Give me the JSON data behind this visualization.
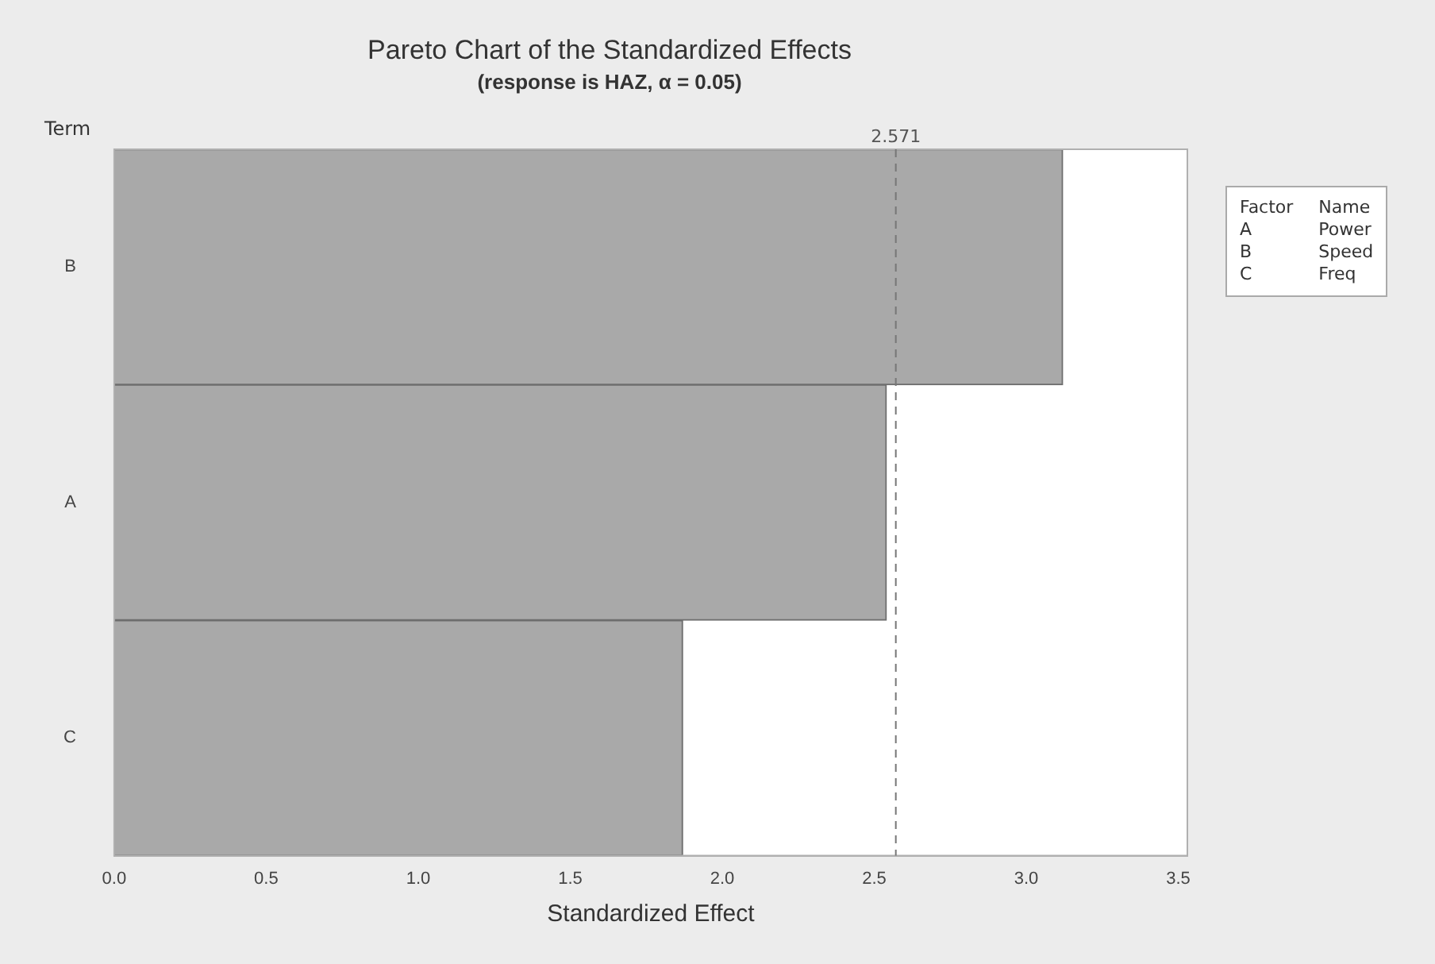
{
  "chart_data": {
    "type": "bar",
    "orientation": "horizontal",
    "title": "Pareto Chart of the Standardized Effects",
    "subtitle": "(response is HAZ, α = 0.05)",
    "xlabel": "Standardized Effect",
    "ylabel": "Term",
    "categories": [
      "B",
      "A",
      "C"
    ],
    "values": [
      3.12,
      2.54,
      1.87
    ],
    "color": "#a9a9a9",
    "xlim": [
      0,
      3.53
    ],
    "xticks": [
      {
        "value": 0,
        "label": "0.0"
      },
      {
        "value": 0.5,
        "label": "0.5"
      },
      {
        "value": 1,
        "label": "1.0"
      },
      {
        "value": 1.5,
        "label": "1.5"
      },
      {
        "value": 2,
        "label": "2.0"
      },
      {
        "value": 2.5,
        "label": "2.5"
      },
      {
        "value": 3,
        "label": "3.0"
      },
      {
        "value": 3.5,
        "label": "3.5"
      }
    ],
    "ref_lines": [
      {
        "axis": "x",
        "value": 2.571,
        "label": "2.571",
        "color": "#777777",
        "line_style": "dashed"
      }
    ],
    "annotations": [
      "Factor",
      "Name",
      "A",
      "Power",
      "B",
      "Speed",
      "C",
      "Freq"
    ],
    "grid": false,
    "legend": false
  }
}
